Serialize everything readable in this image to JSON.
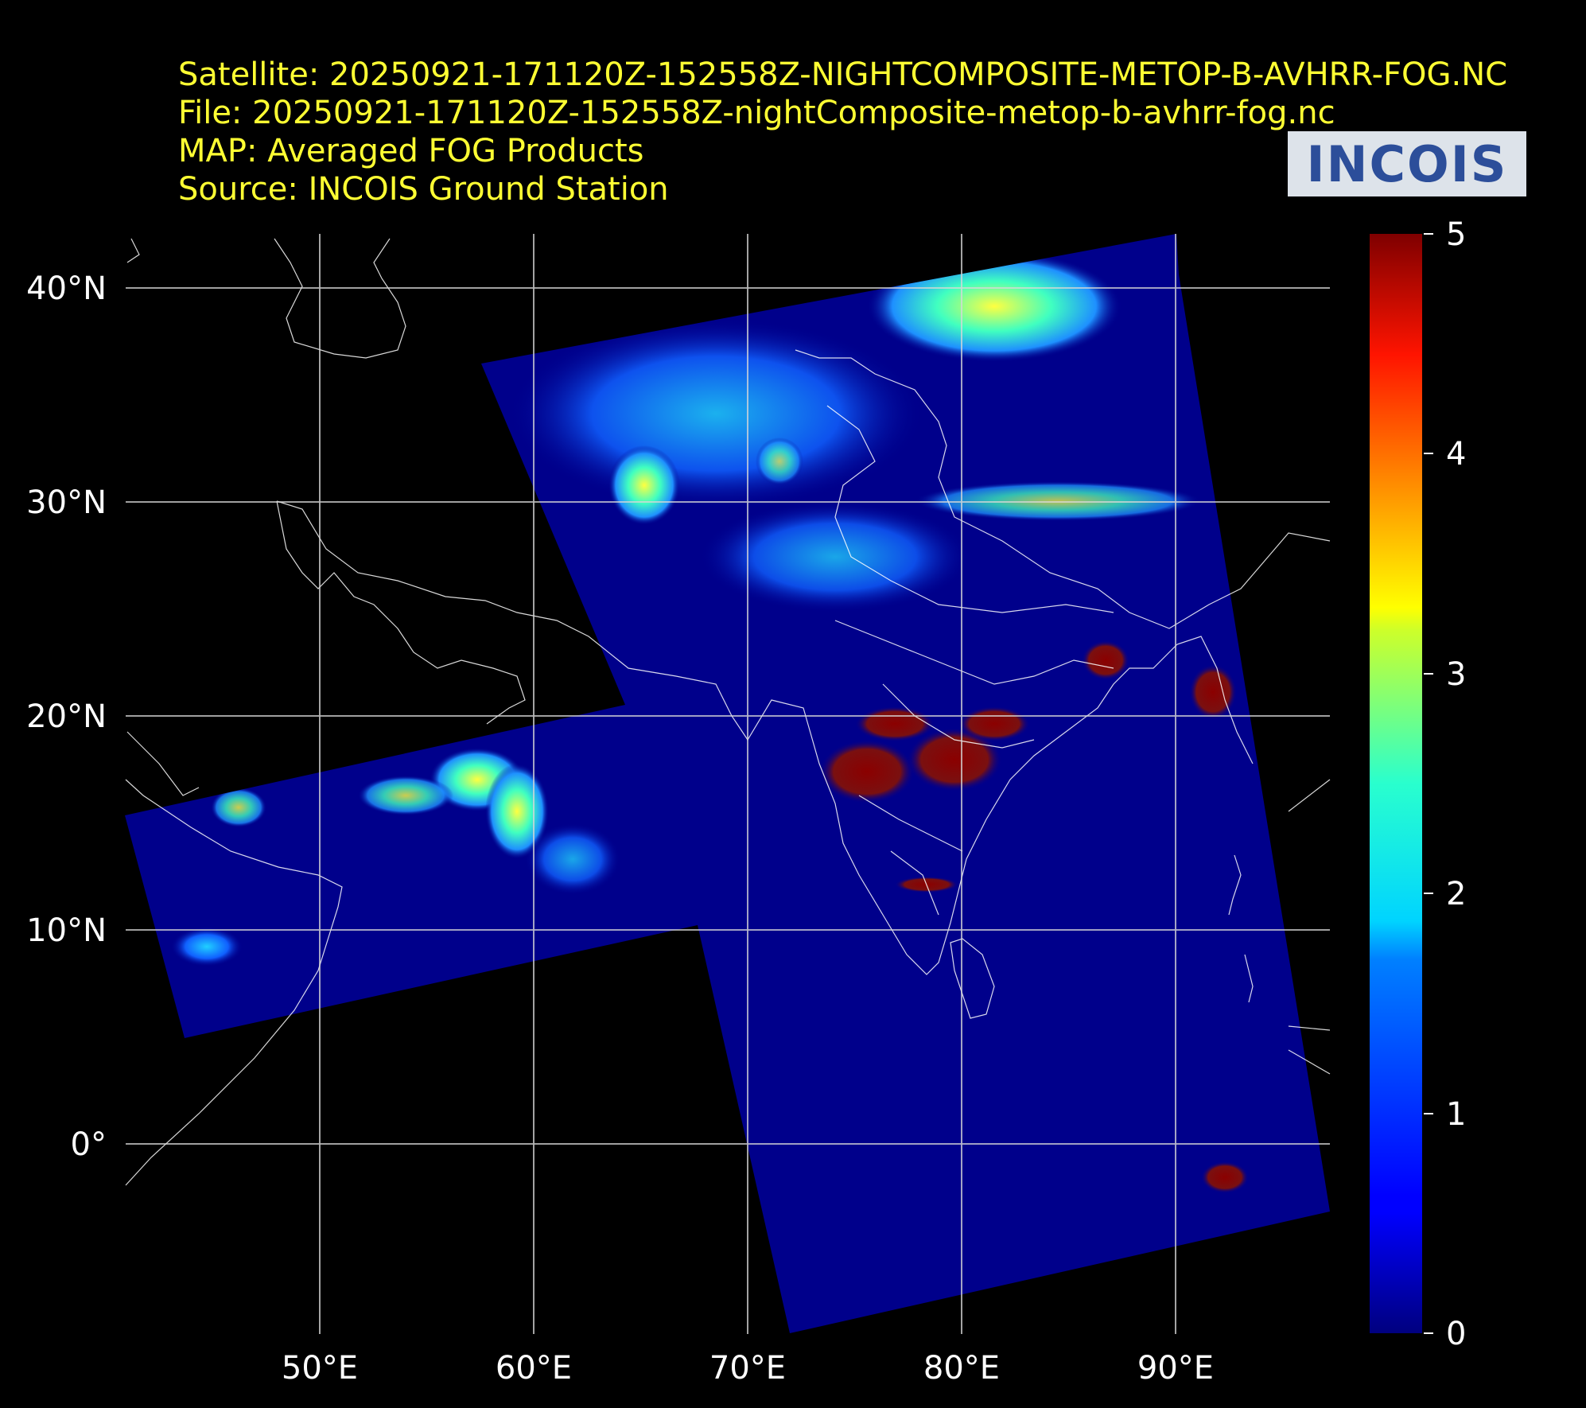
{
  "header": {
    "satellite": "Satellite: 20250921-171120Z-152558Z-NIGHTCOMPOSITE-METOP-B-AVHRR-FOG.NC",
    "file": "File: 20250921-171120Z-152558Z-nightComposite-metop-b-avhrr-fog.nc",
    "map": "MAP: Averaged FOG Products",
    "source": "Source: INCOIS Ground Station"
  },
  "logo": {
    "text": "INCOIS"
  },
  "map": {
    "lon_labels": [
      "50°E",
      "60°E",
      "70°E",
      "80°E",
      "90°E"
    ],
    "lat_labels": [
      "40°N",
      "30°N",
      "20°N",
      "10°N",
      "0°"
    ],
    "lon_values": [
      50,
      60,
      70,
      80,
      90
    ],
    "lat_values": [
      40,
      30,
      20,
      10,
      0
    ],
    "lon_range": [
      40.9,
      97.3
    ],
    "lat_range": [
      -8.6,
      42.6
    ],
    "gridlines": true
  },
  "colorbar": {
    "colormap": "jet",
    "range": [
      0,
      5
    ],
    "tick_labels": [
      "5",
      "4",
      "3",
      "2",
      "1",
      "0"
    ],
    "tick_values": [
      5,
      4,
      3,
      2,
      1,
      0
    ]
  }
}
